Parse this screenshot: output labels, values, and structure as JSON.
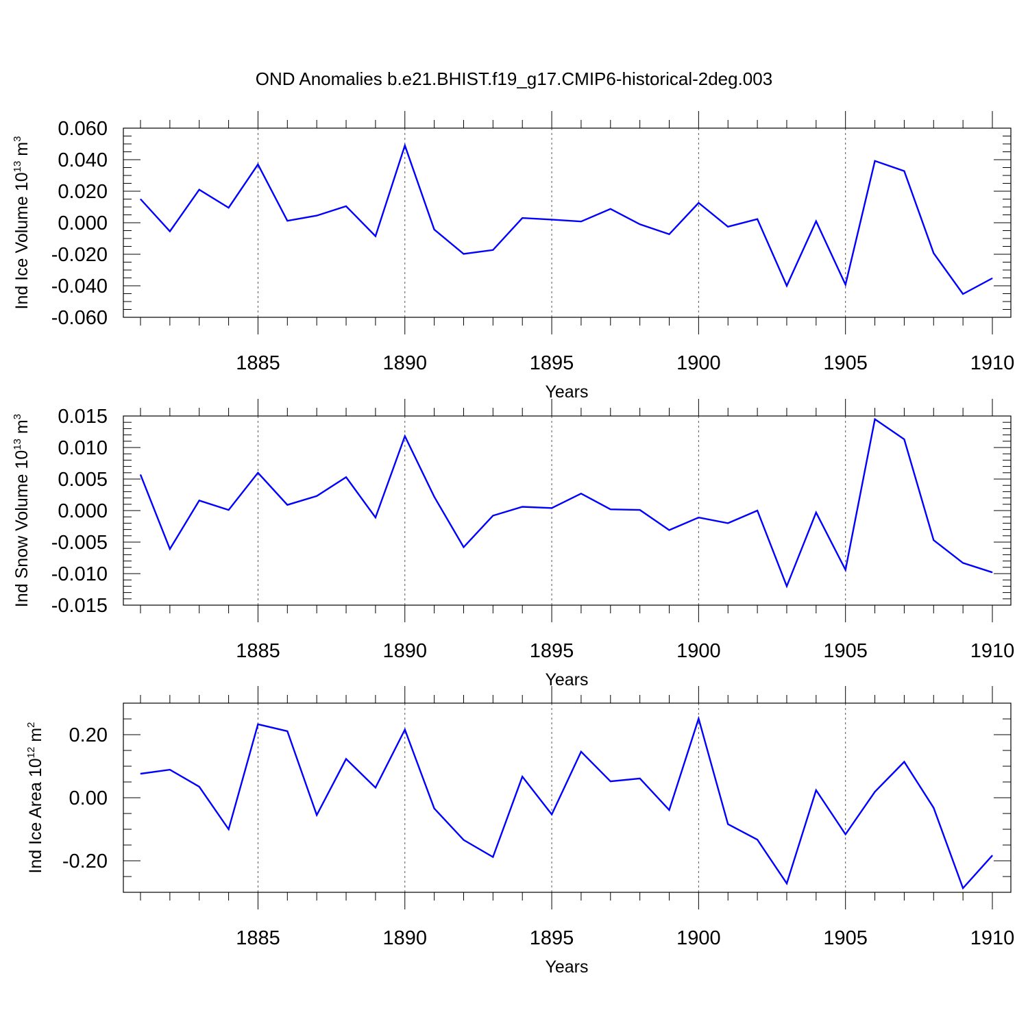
{
  "title": "OND Anomalies b.e21.BHIST.f19_g17.CMIP6-historical-2deg.003",
  "colors": {
    "series": "#0000ff",
    "grid": "#555555",
    "frame": "#000000"
  },
  "chart_data": [
    {
      "type": "line",
      "ylabel": "Ind Ice Volume 10",
      "ylabel_exp": "13",
      "ylabel_unit": " m",
      "ylabel_unit_exp": "3",
      "xlabel": "Years",
      "xlim": [
        1881,
        1910
      ],
      "ylim": [
        -0.06,
        0.06
      ],
      "grid": "vertical dashed at labeled years",
      "x_ticks": [
        "1885",
        "1890",
        "1895",
        "1900",
        "1905",
        "1910"
      ],
      "y_ticks": [
        "0.060",
        "0.040",
        "0.020",
        "0.000",
        "-0.020",
        "-0.040",
        "-0.060"
      ],
      "y_tick_values": [
        0.06,
        0.04,
        0.02,
        0.0,
        -0.02,
        -0.04,
        -0.06
      ],
      "y_minor_step": 0.005,
      "x": [
        1881,
        1882,
        1883,
        1884,
        1885,
        1886,
        1887,
        1888,
        1889,
        1890,
        1891,
        1892,
        1893,
        1894,
        1895,
        1896,
        1897,
        1898,
        1899,
        1900,
        1901,
        1902,
        1903,
        1904,
        1905,
        1906,
        1907,
        1908,
        1909,
        1910
      ],
      "values": [
        0.015,
        -0.0055,
        0.021,
        0.0095,
        0.037,
        0.0012,
        0.0045,
        0.0105,
        -0.0085,
        0.049,
        -0.0043,
        -0.0198,
        -0.0173,
        0.003,
        0.002,
        0.0008,
        0.0088,
        -0.001,
        -0.0073,
        0.0126,
        -0.0025,
        0.0023,
        -0.04,
        0.001,
        -0.0393,
        0.0392,
        0.0328,
        -0.0193,
        -0.0452,
        -0.0352
      ]
    },
    {
      "type": "line",
      "ylabel": "Ind Snow Volume 10",
      "ylabel_exp": "13",
      "ylabel_unit": " m",
      "ylabel_unit_exp": "3",
      "xlabel": "Years",
      "xlim": [
        1881,
        1910
      ],
      "ylim": [
        -0.015,
        0.015
      ],
      "grid": "vertical dashed at labeled years",
      "x_ticks": [
        "1885",
        "1890",
        "1895",
        "1900",
        "1905",
        "1910"
      ],
      "y_ticks": [
        "0.015",
        "0.010",
        "0.005",
        "0.000",
        "-0.005",
        "-0.010",
        "-0.015"
      ],
      "y_tick_values": [
        0.015,
        0.01,
        0.005,
        0.0,
        -0.005,
        -0.01,
        -0.015
      ],
      "y_minor_step": 0.001,
      "x": [
        1881,
        1882,
        1883,
        1884,
        1885,
        1886,
        1887,
        1888,
        1889,
        1890,
        1891,
        1892,
        1893,
        1894,
        1895,
        1896,
        1897,
        1898,
        1899,
        1900,
        1901,
        1902,
        1903,
        1904,
        1905,
        1906,
        1907,
        1908,
        1909,
        1910
      ],
      "values": [
        0.0057,
        -0.0061,
        0.0016,
        0.0001,
        0.006,
        0.0009,
        0.0023,
        0.0053,
        -0.0011,
        0.0118,
        0.0022,
        -0.0058,
        -0.0008,
        0.0006,
        0.0004,
        0.0027,
        0.0002,
        0.0001,
        -0.0031,
        -0.0011,
        -0.002,
        0.0,
        -0.012,
        -0.0003,
        -0.0094,
        0.0145,
        0.0113,
        -0.0047,
        -0.0083,
        -0.0098
      ]
    },
    {
      "type": "line",
      "ylabel": "Ind Ice Area 10",
      "ylabel_exp": "12",
      "ylabel_unit": " m",
      "ylabel_unit_exp": "2",
      "xlabel": "Years",
      "xlim": [
        1881,
        1910
      ],
      "ylim": [
        -0.3,
        0.3
      ],
      "grid": "vertical dashed at labeled years",
      "x_ticks": [
        "1885",
        "1890",
        "1895",
        "1900",
        "1905",
        "1910"
      ],
      "y_ticks": [
        "0.20",
        "0.00",
        "-0.20"
      ],
      "y_tick_values": [
        0.2,
        0.0,
        -0.2
      ],
      "y_minor_step": 0.05,
      "x": [
        1881,
        1882,
        1883,
        1884,
        1885,
        1886,
        1887,
        1888,
        1889,
        1890,
        1891,
        1892,
        1893,
        1894,
        1895,
        1896,
        1897,
        1898,
        1899,
        1900,
        1901,
        1902,
        1903,
        1904,
        1905,
        1906,
        1907,
        1908,
        1909,
        1910
      ],
      "values": [
        0.076,
        0.089,
        0.035,
        -0.1,
        0.233,
        0.211,
        -0.055,
        0.123,
        0.032,
        0.216,
        -0.034,
        -0.134,
        -0.188,
        0.067,
        -0.053,
        0.146,
        0.052,
        0.061,
        -0.039,
        0.251,
        -0.084,
        -0.133,
        -0.272,
        0.024,
        -0.116,
        0.019,
        0.114,
        -0.032,
        -0.287,
        -0.183
      ]
    }
  ]
}
